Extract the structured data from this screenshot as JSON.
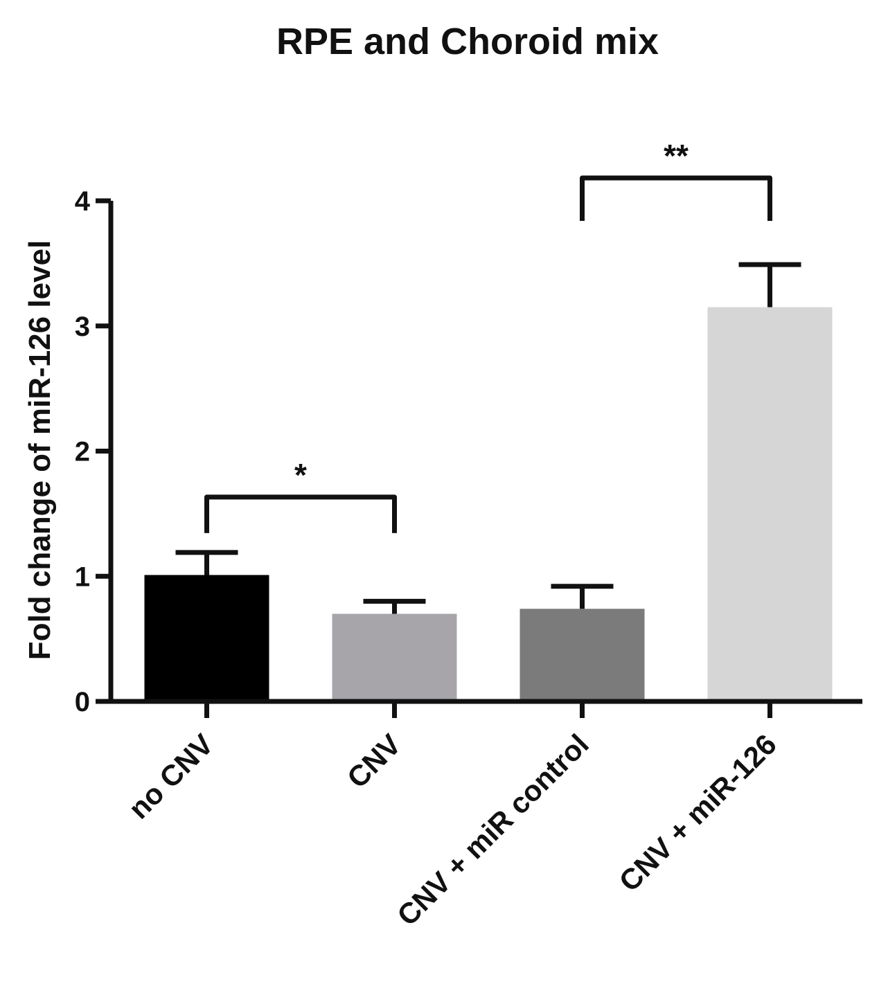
{
  "chart_data": {
    "type": "bar",
    "title": "RPE and Choroid mix",
    "xlabel": "",
    "ylabel": "Fold change of miR-126 level",
    "ylim": [
      0,
      4
    ],
    "yticks": [
      "0",
      "1",
      "2",
      "3",
      "4"
    ],
    "grid": false,
    "legend": "none",
    "categories": [
      "no CNV",
      "CNV",
      "CNV + miR control",
      "CNV + miR-126"
    ],
    "values": [
      1.01,
      0.7,
      0.74,
      3.15
    ],
    "errors": [
      0.18,
      0.1,
      0.18,
      0.34
    ],
    "colors": [
      "#000000",
      "#a7a5aa",
      "#7b7b7b",
      "#d6d6d6"
    ],
    "significance": [
      {
        "from": 0,
        "to": 1,
        "label": "*"
      },
      {
        "from": 2,
        "to": 3,
        "label": "**"
      }
    ]
  }
}
